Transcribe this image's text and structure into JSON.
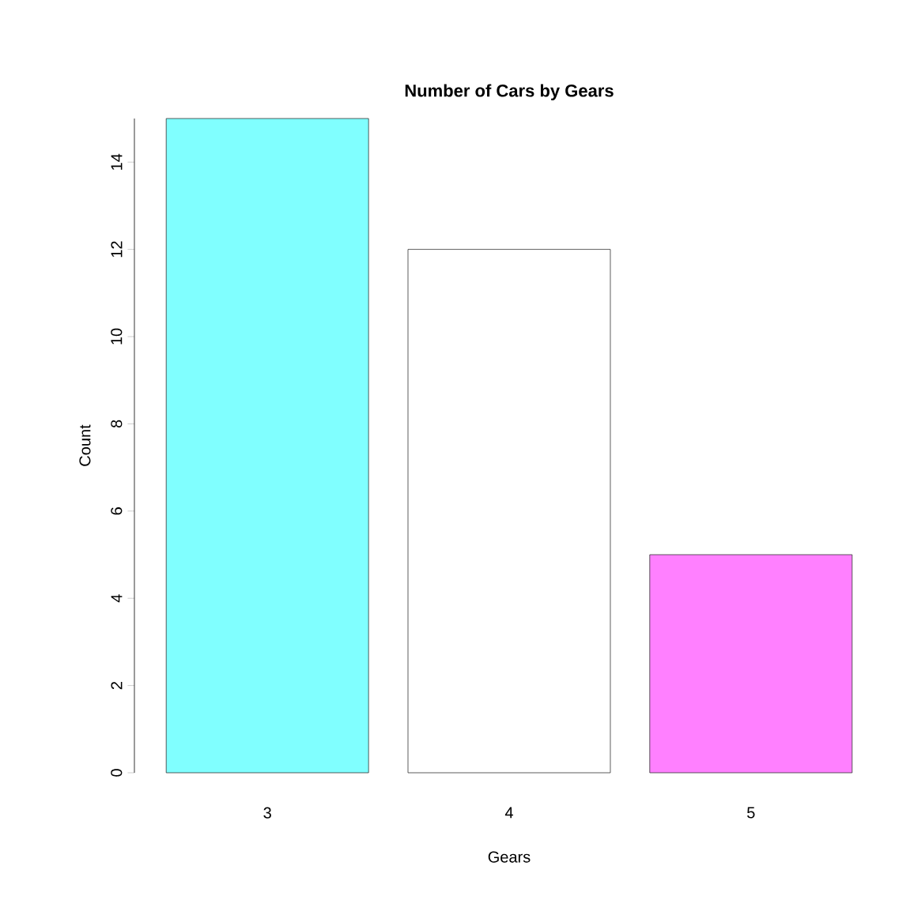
{
  "chart_data": {
    "type": "bar",
    "title": "Number of Cars by Gears",
    "xlabel": "Gears",
    "ylabel": "Count",
    "categories": [
      "3",
      "4",
      "5"
    ],
    "values": [
      15,
      12,
      5
    ],
    "colors": [
      "#80ffff",
      "#ffffff",
      "#ff80ff"
    ],
    "ylim": [
      0,
      15
    ],
    "yticks": [
      0,
      2,
      4,
      6,
      8,
      10,
      12,
      14
    ]
  }
}
